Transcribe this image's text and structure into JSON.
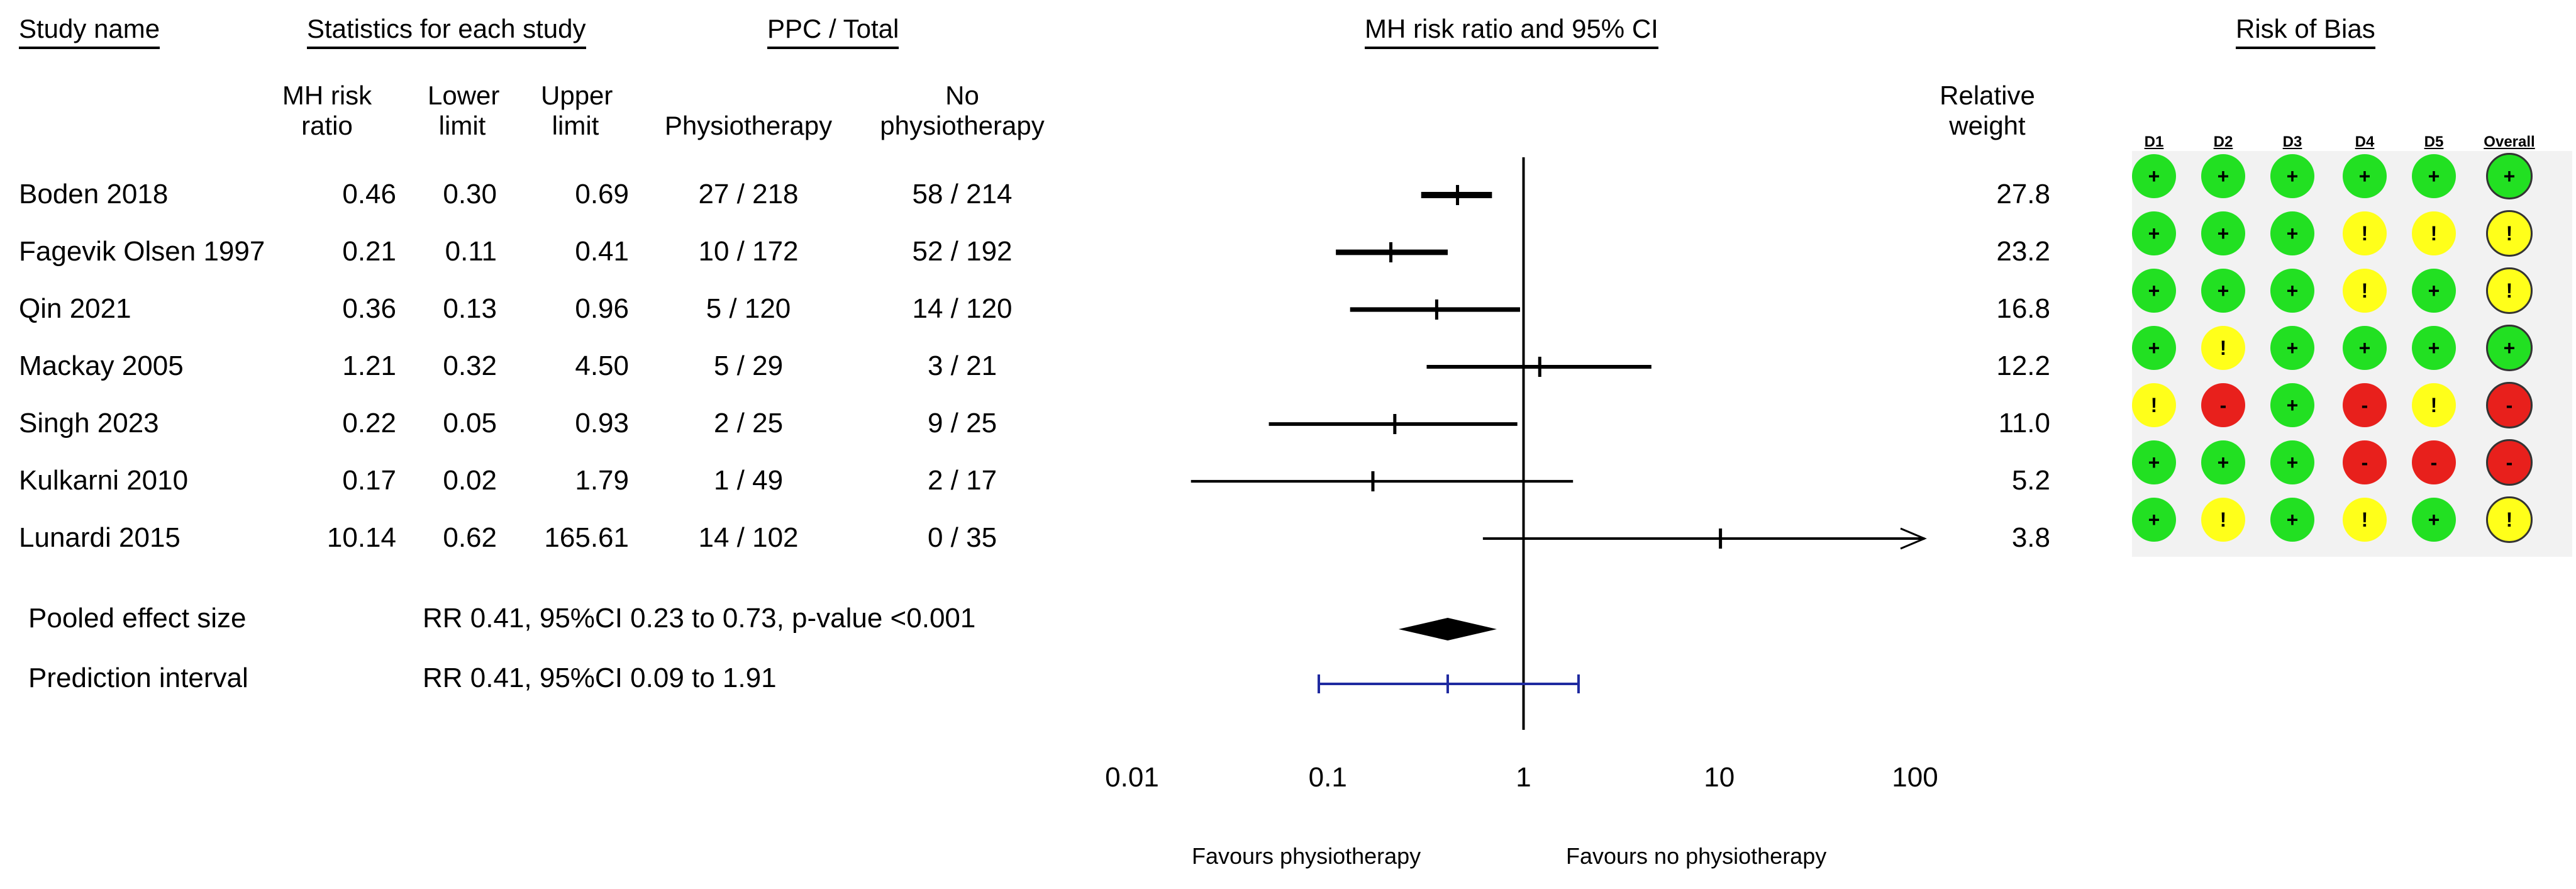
{
  "headers": {
    "study_name": "Study name",
    "statistics": "Statistics for each study",
    "ppc_total": "PPC / Total",
    "mh_plot": "MH risk ratio and 95% CI",
    "risk_of_bias": "Risk of Bias",
    "col_mh_line1": "MH risk",
    "col_mh_line2": "ratio",
    "col_lower_line1": "Lower",
    "col_lower_line2": "limit",
    "col_upper_line1": "Upper",
    "col_upper_line2": "limit",
    "col_physio": "Physiotherapy",
    "col_nophysio_line1": "No",
    "col_nophysio_line2": "physiotherapy",
    "col_weight_line1": "Relative",
    "col_weight_line2": "weight"
  },
  "studies": [
    {
      "name": "Boden 2018",
      "rr": "0.46",
      "lower": "0.30",
      "upper": "0.69",
      "physio": "27 / 218",
      "nophysio": "58 / 214",
      "weight": "27.8"
    },
    {
      "name": "Fagevik Olsen 1997",
      "rr": "0.21",
      "lower": "0.11",
      "upper": "0.41",
      "physio": "10 / 172",
      "nophysio": "52 / 192",
      "weight": "23.2"
    },
    {
      "name": "Qin 2021",
      "rr": "0.36",
      "lower": "0.13",
      "upper": "0.96",
      "physio": "5 / 120",
      "nophysio": "14 / 120",
      "weight": "16.8"
    },
    {
      "name": "Mackay 2005",
      "rr": "1.21",
      "lower": "0.32",
      "upper": "4.50",
      "physio": "5 / 29",
      "nophysio": "3 / 21",
      "weight": "12.2"
    },
    {
      "name": "Singh 2023",
      "rr": "0.22",
      "lower": "0.05",
      "upper": "0.93",
      "physio": "2 / 25",
      "nophysio": "9 / 25",
      "weight": "11.0"
    },
    {
      "name": "Kulkarni 2010",
      "rr": "0.17",
      "lower": "0.02",
      "upper": "1.79",
      "physio": "1 / 49",
      "nophysio": "2 / 17",
      "weight": "5.2"
    },
    {
      "name": "Lunardi 2015",
      "rr": "10.14",
      "lower": "0.62",
      "upper": "165.61",
      "physio": "14 / 102",
      "nophysio": "0 / 35",
      "weight": "3.8"
    }
  ],
  "pooled": {
    "label": "Pooled effect size",
    "text": "RR 0.41, 95%CI 0.23 to 0.73, p-value <0.001"
  },
  "prediction": {
    "label": "Prediction interval",
    "text": "RR 0.41, 95%CI 0.09 to 1.91"
  },
  "favours": {
    "left": "Favours physiotherapy",
    "right": "Favours no physiotherapy"
  },
  "rob": {
    "domains": [
      "D1",
      "D2",
      "D3",
      "D4",
      "D5",
      "Overall"
    ],
    "rows": [
      [
        "low",
        "low",
        "low",
        "low",
        "low",
        "low"
      ],
      [
        "low",
        "low",
        "low",
        "some",
        "some",
        "some"
      ],
      [
        "low",
        "low",
        "low",
        "some",
        "low",
        "some"
      ],
      [
        "low",
        "some",
        "low",
        "low",
        "low",
        "low"
      ],
      [
        "some",
        "high",
        "low",
        "high",
        "some",
        "high"
      ],
      [
        "low",
        "low",
        "low",
        "high",
        "high",
        "high"
      ],
      [
        "low",
        "some",
        "low",
        "some",
        "low",
        "some"
      ]
    ],
    "symbols": {
      "low": "+",
      "some": "!",
      "high": "-"
    },
    "colors": {
      "low": "#22e022",
      "some": "#ffff1a",
      "high": "#e8201c"
    }
  },
  "chart_data": {
    "type": "forest",
    "title": "MH risk ratio and 95% CI",
    "xscale": "log",
    "xlim": [
      0.01,
      100
    ],
    "xticks": [
      0.01,
      0.1,
      1,
      10,
      100
    ],
    "xtick_labels": [
      "0.01",
      "0.1",
      "1",
      "10",
      "100"
    ],
    "reference_line": 1,
    "studies": [
      {
        "name": "Boden 2018",
        "rr": 0.46,
        "lower": 0.3,
        "upper": 0.69,
        "weight": 27.8
      },
      {
        "name": "Fagevik Olsen 1997",
        "rr": 0.21,
        "lower": 0.11,
        "upper": 0.41,
        "weight": 23.2
      },
      {
        "name": "Qin 2021",
        "rr": 0.36,
        "lower": 0.13,
        "upper": 0.96,
        "weight": 16.8
      },
      {
        "name": "Mackay 2005",
        "rr": 1.21,
        "lower": 0.32,
        "upper": 4.5,
        "weight": 12.2
      },
      {
        "name": "Singh 2023",
        "rr": 0.22,
        "lower": 0.05,
        "upper": 0.93,
        "weight": 11.0
      },
      {
        "name": "Kulkarni 2010",
        "rr": 0.17,
        "lower": 0.02,
        "upper": 1.79,
        "weight": 5.2
      },
      {
        "name": "Lunardi 2015",
        "rr": 10.14,
        "lower": 0.62,
        "upper": 165.61,
        "weight": 3.8,
        "arrow_right": true
      }
    ],
    "pooled": {
      "rr": 0.41,
      "lower": 0.23,
      "upper": 0.73
    },
    "prediction_interval": {
      "rr": 0.41,
      "lower": 0.09,
      "upper": 1.91,
      "color": "#1f2aa0"
    }
  }
}
